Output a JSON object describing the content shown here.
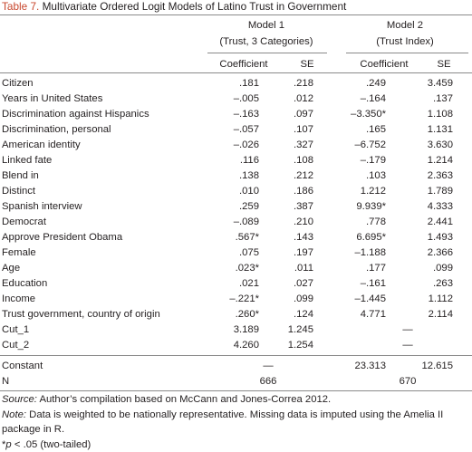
{
  "caption": {
    "number": "Table 7.",
    "title": "Multivariate Ordered Logit Models of Latino Trust in Government"
  },
  "header": {
    "model1": {
      "name": "Model 1",
      "subtitle": "(Trust, 3 Categories)"
    },
    "model2": {
      "name": "Model 2",
      "subtitle": "(Trust Index)"
    },
    "coef_label": "Coefficient",
    "se_label": "SE"
  },
  "rows": [
    {
      "label": "Citizen",
      "m1_coef": ".181",
      "m1_se": ".218",
      "m2_coef": ".249",
      "m2_se": "3.459"
    },
    {
      "label": "Years in United States",
      "m1_coef": "–.005",
      "m1_se": ".012",
      "m2_coef": "–.164",
      "m2_se": ".137"
    },
    {
      "label": "Discrimination against Hispanics",
      "m1_coef": "–.163",
      "m1_se": ".097",
      "m2_coef": "–3.350*",
      "m2_se": "1.108"
    },
    {
      "label": "Discrimination, personal",
      "m1_coef": "–.057",
      "m1_se": ".107",
      "m2_coef": ".165",
      "m2_se": "1.131"
    },
    {
      "label": "American identity",
      "m1_coef": "–.026",
      "m1_se": ".327",
      "m2_coef": "–6.752",
      "m2_se": "3.630"
    },
    {
      "label": "Linked fate",
      "m1_coef": ".116",
      "m1_se": ".108",
      "m2_coef": "–.179",
      "m2_se": "1.214"
    },
    {
      "label": "Blend in",
      "m1_coef": ".138",
      "m1_se": ".212",
      "m2_coef": ".103",
      "m2_se": "2.363"
    },
    {
      "label": "Distinct",
      "m1_coef": ".010",
      "m1_se": ".186",
      "m2_coef": "1.212",
      "m2_se": "1.789"
    },
    {
      "label": "Spanish interview",
      "m1_coef": ".259",
      "m1_se": ".387",
      "m2_coef": "9.939*",
      "m2_se": "4.333"
    },
    {
      "label": "Democrat",
      "m1_coef": "–.089",
      "m1_se": ".210",
      "m2_coef": ".778",
      "m2_se": "2.441"
    },
    {
      "label": "Approve President Obama",
      "m1_coef": ".567*",
      "m1_se": ".143",
      "m2_coef": "6.695*",
      "m2_se": "1.493"
    },
    {
      "label": "Female",
      "m1_coef": ".075",
      "m1_se": ".197",
      "m2_coef": "–1.188",
      "m2_se": "2.366"
    },
    {
      "label": "Age",
      "m1_coef": ".023*",
      "m1_se": ".011",
      "m2_coef": ".177",
      "m2_se": ".099"
    },
    {
      "label": "Education",
      "m1_coef": ".021",
      "m1_se": ".027",
      "m2_coef": "–.161",
      "m2_se": ".263"
    },
    {
      "label": "Income",
      "m1_coef": "–.221*",
      "m1_se": ".099",
      "m2_coef": "–1.445",
      "m2_se": "1.112"
    },
    {
      "label": "Trust government, country of origin",
      "m1_coef": ".260*",
      "m1_se": ".124",
      "m2_coef": "4.771",
      "m2_se": "2.114"
    },
    {
      "label": "Cut_1",
      "m1_coef": "3.189",
      "m1_se": "1.245",
      "m2_coef": "",
      "m2_se": ""
    },
    {
      "label": "Cut_2",
      "m1_coef": "4.260",
      "m1_se": "1.254",
      "m2_coef": "",
      "m2_se": ""
    }
  ],
  "cut_m2_dash": "—",
  "constant": {
    "label": "Constant",
    "m1": "—",
    "m2_coef": "23.313",
    "m2_se": "12.615"
  },
  "n_row": {
    "label": "N",
    "m1": "666",
    "m2": "670"
  },
  "notes": {
    "source_label": "Source:",
    "source_text": " Author’s compilation based on McCann and Jones-Correa 2012.",
    "note_label": "Note:",
    "note_text": " Data is weighted to be nationally representative. Missing data is imputed using the Amelia II package in R.",
    "sig_star": "*",
    "sig_p": "p",
    "sig_text": " < .05 (two-tailed)"
  }
}
